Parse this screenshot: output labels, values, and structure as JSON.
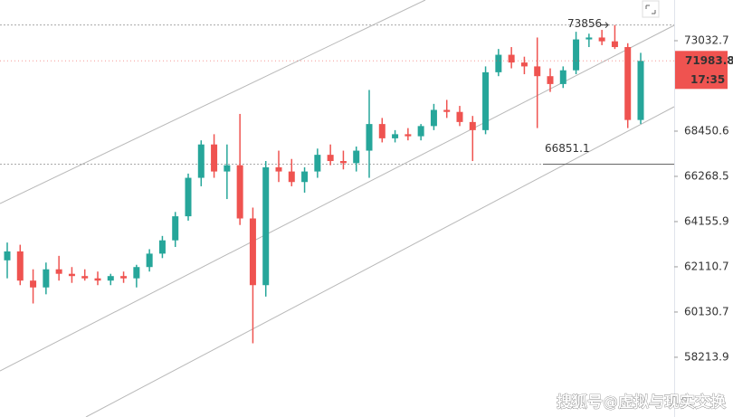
{
  "chart_data": {
    "type": "candlestick",
    "log_scale": true,
    "grid": false,
    "up_color": "#26a69a",
    "down_color": "#ef5350",
    "ylim": [
      55775,
      75193
    ],
    "yticks": [
      73032.7,
      68450.6,
      66268.5,
      64155.9,
      62110.7,
      60130.7,
      58213.9
    ],
    "open": [
      62400,
      62800,
      61500,
      61200,
      62000,
      61800,
      61700,
      61600,
      61500,
      61700,
      61600,
      62100,
      62700,
      63300,
      64400,
      66200,
      67800,
      66500,
      66800,
      64300,
      61300,
      66700,
      66500,
      66000,
      66500,
      67300,
      67000,
      66900,
      67500,
      68800,
      68100,
      68300,
      68200,
      68700,
      69500,
      69400,
      68900,
      68500,
      71400,
      72300,
      71900,
      71700,
      71200,
      70800,
      71500,
      73100,
      73200,
      73000,
      72700,
      69000
    ],
    "high": [
      63200,
      63100,
      62000,
      62300,
      62600,
      62100,
      62000,
      61900,
      61800,
      61900,
      62200,
      62900,
      63500,
      64600,
      66400,
      68000,
      68300,
      67800,
      69300,
      64800,
      67000,
      67500,
      67100,
      66700,
      67600,
      67800,
      67500,
      67700,
      70500,
      69100,
      68500,
      68600,
      68800,
      69800,
      70000,
      69700,
      69200,
      71700,
      72600,
      72700,
      72200,
      73200,
      71600,
      71700,
      73500,
      73400,
      73600,
      73856,
      72900,
      72400
    ],
    "low": [
      61600,
      61300,
      60500,
      60900,
      61500,
      61400,
      61500,
      61300,
      61300,
      61400,
      61200,
      61900,
      62500,
      63000,
      64200,
      65800,
      66200,
      65200,
      64000,
      58800,
      60800,
      66000,
      65800,
      65500,
      66200,
      66800,
      66600,
      66500,
      66200,
      67900,
      67900,
      68000,
      68000,
      68500,
      69100,
      68700,
      67000,
      68300,
      71200,
      71600,
      71300,
      68600,
      70400,
      70600,
      71300,
      72700,
      72800,
      72600,
      68600,
      68800
    ],
    "close": [
      62800,
      61500,
      61200,
      62000,
      61800,
      61700,
      61600,
      61500,
      61700,
      61600,
      62100,
      62700,
      63300,
      64400,
      66200,
      67800,
      66500,
      66800,
      64300,
      61300,
      66700,
      66500,
      66000,
      66500,
      67300,
      67000,
      66900,
      67500,
      68800,
      68100,
      68300,
      68200,
      68700,
      69500,
      69400,
      68900,
      68500,
      71400,
      72300,
      71900,
      71700,
      71200,
      70800,
      71500,
      73100,
      73200,
      73000,
      72700,
      69000,
      71983.8
    ],
    "high_marker": 73856,
    "level_marker": 66851.1,
    "last_price": 71983.8,
    "countdown": "17:35",
    "watermark": "搜狐号@虚拟与现实交换"
  }
}
